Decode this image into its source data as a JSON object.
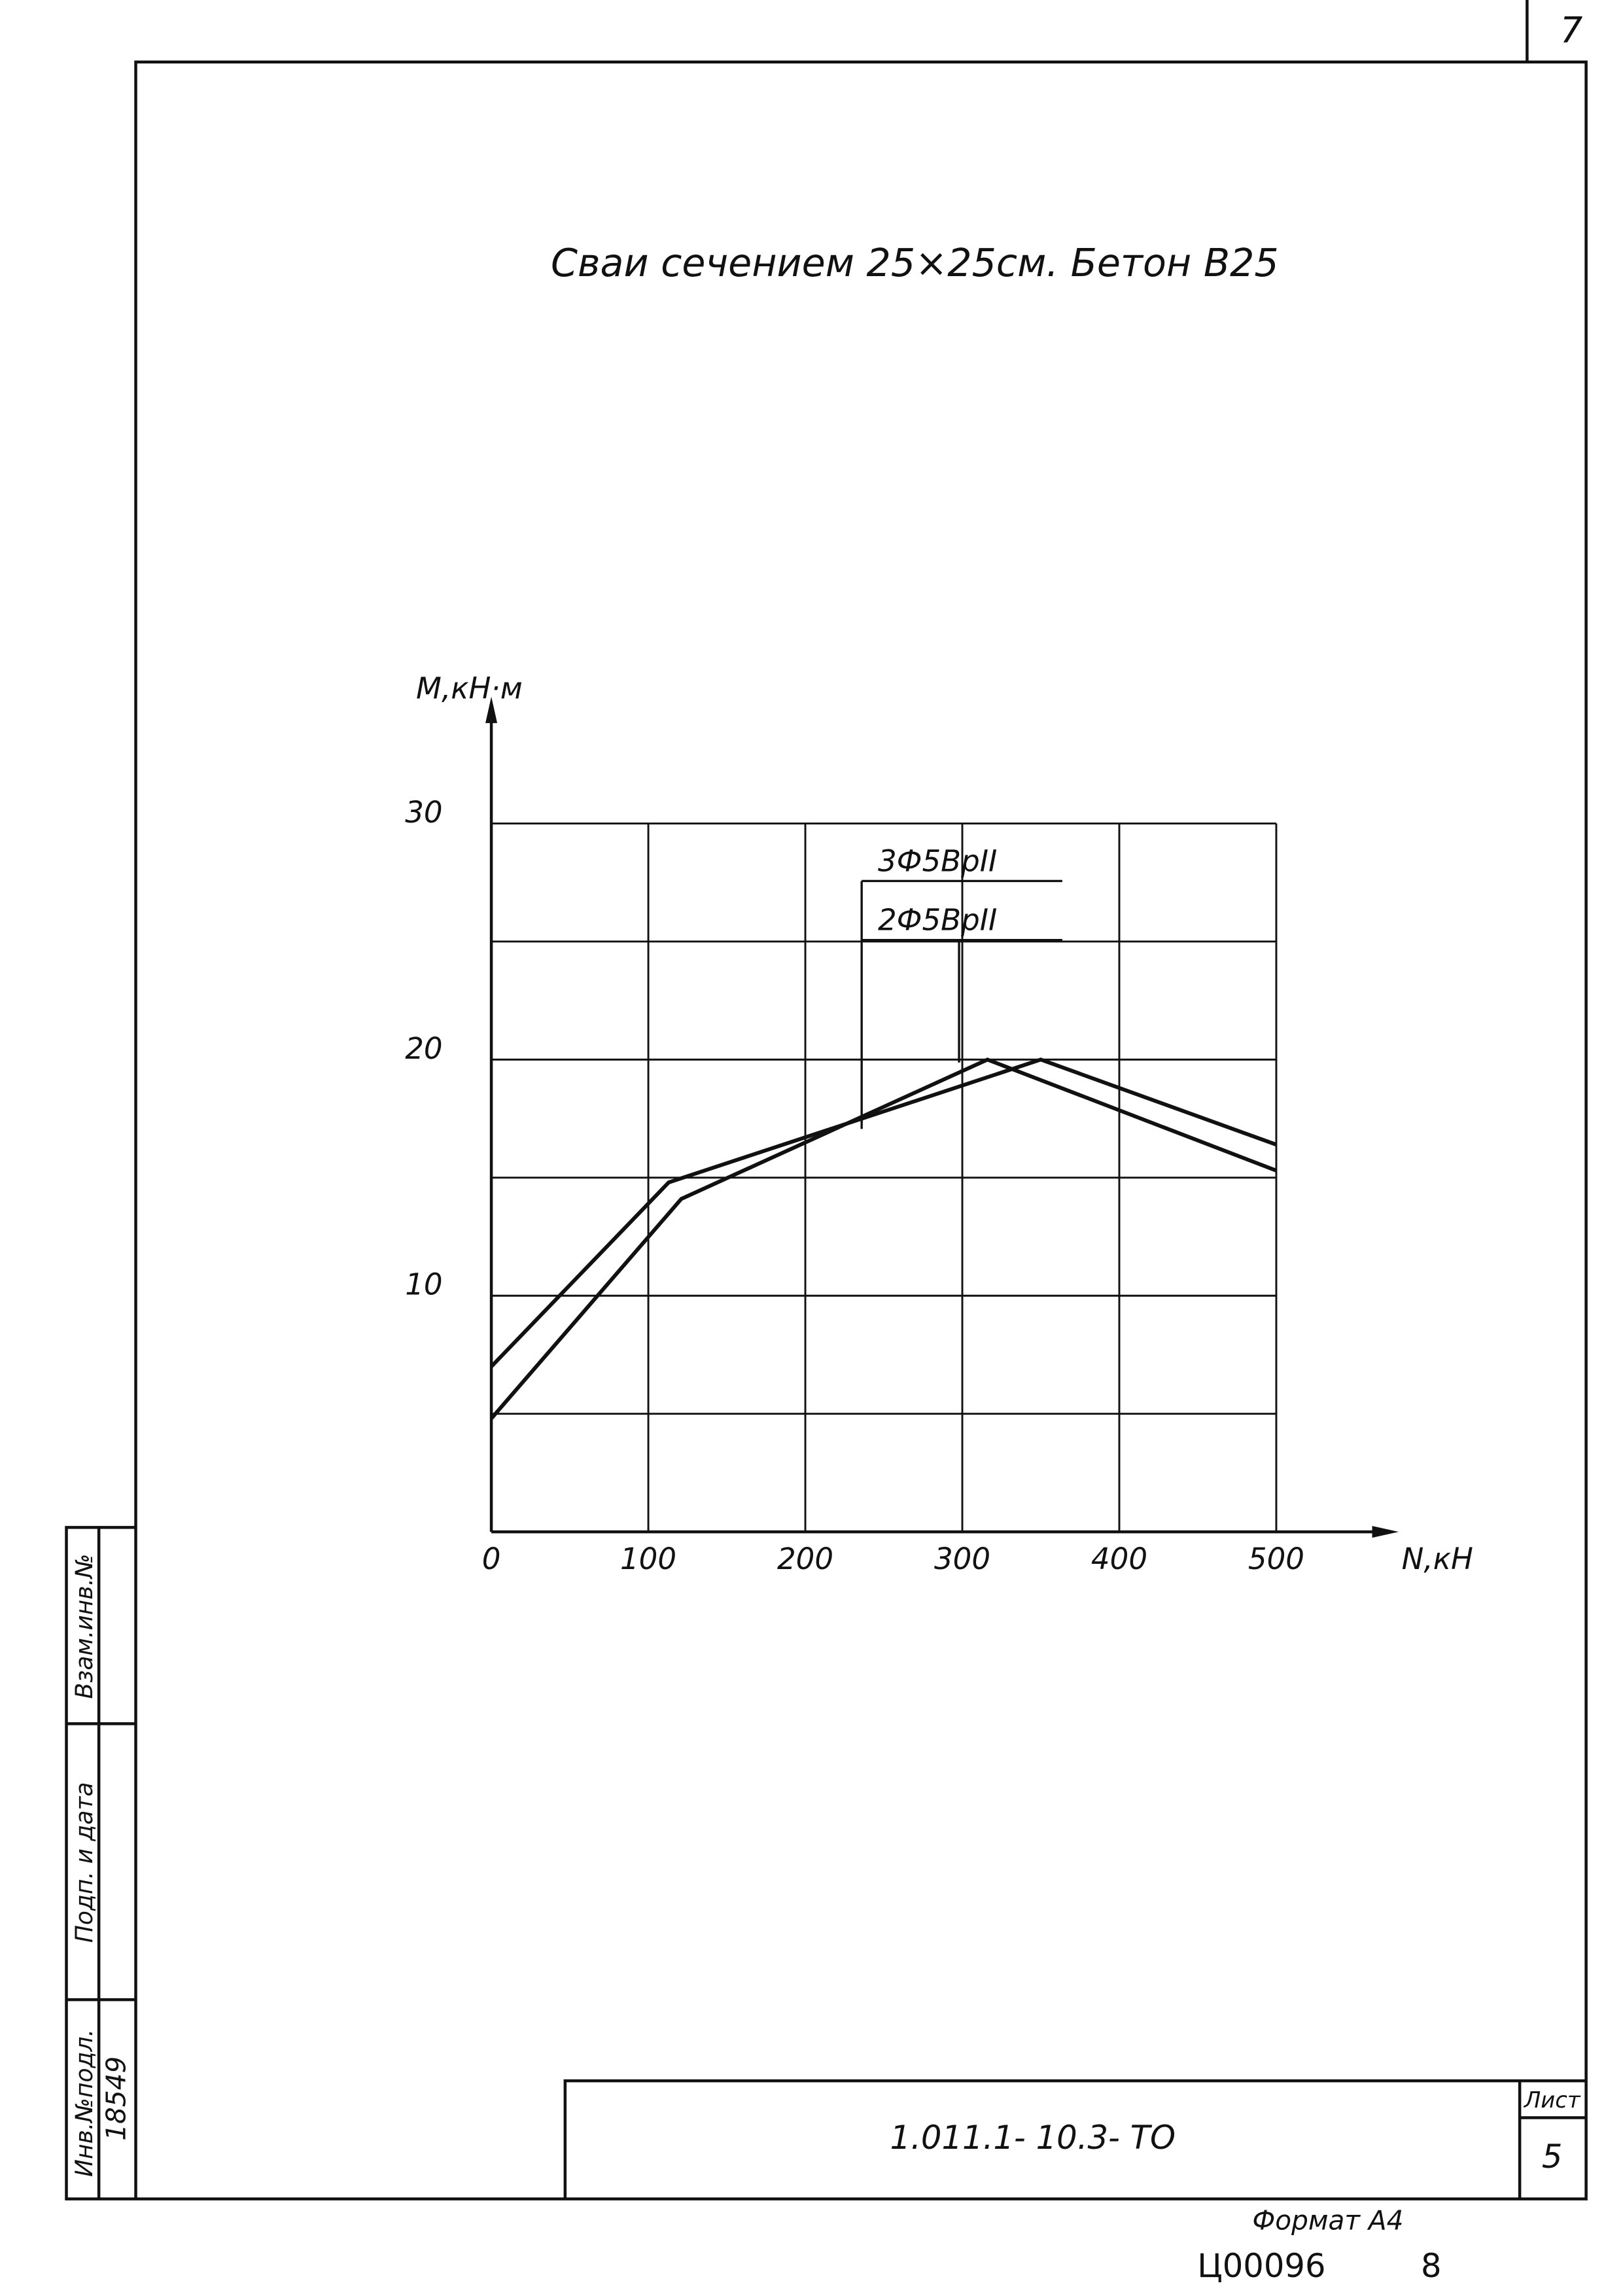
{
  "page_number": "7",
  "chart_data": {
    "type": "line",
    "title": "Сваи сечением 25×25см. Бетон В25",
    "y_label": "M,кН·м",
    "x_label": "N,кН",
    "xlim": [
      0,
      500
    ],
    "xticks": [
      0,
      100,
      200,
      300,
      400,
      500
    ],
    "ylim": [
      0,
      30
    ],
    "yticks": [
      10,
      20,
      30
    ],
    "ygrid": [
      5,
      10,
      15,
      20,
      25,
      30
    ],
    "grid": true,
    "series": [
      {
        "name": "3Ф5ВрII",
        "color": "#111111",
        "x": [
          0,
          113,
          350,
          500
        ],
        "values": [
          7,
          14.8,
          20,
          16.4
        ]
      },
      {
        "name": "2Ф5ВрII",
        "color": "#111111",
        "x": [
          0,
          121,
          316,
          500
        ],
        "values": [
          4.8,
          14.1,
          20,
          15.3
        ]
      }
    ]
  },
  "title_block": {
    "code": "1.011.1- 10.3-  ТО",
    "sheet_label": "Лист",
    "sheet": "5"
  },
  "side": {
    "inv_label": "Инв.№подл.",
    "sign_label": "Подп. и дата",
    "replace_label": "Взам.инв.№",
    "inv": "18549"
  },
  "footer": {
    "format": "Формат А4",
    "archive": "Ц00096",
    "page": "8"
  }
}
